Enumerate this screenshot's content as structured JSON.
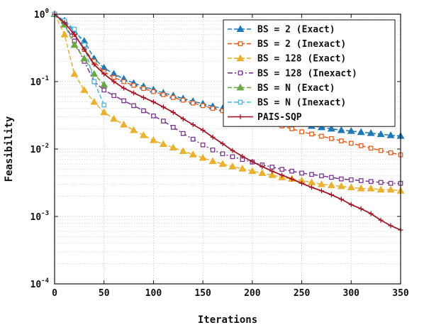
{
  "chart_data": {
    "type": "line",
    "title": "",
    "xlabel": "Iterations",
    "ylabel": "Feasibility",
    "xlim": [
      0,
      350
    ],
    "ylim": [
      0.0001,
      1
    ],
    "y_scale": "log",
    "grid": true,
    "legend_position": "top-right",
    "x_ticks": [
      0,
      50,
      100,
      150,
      200,
      250,
      300,
      350
    ],
    "y_ticks": [
      {
        "value": 1,
        "base": "10",
        "exp": "0"
      },
      {
        "value": 0.1,
        "base": "10",
        "exp": "-1"
      },
      {
        "value": 0.01,
        "base": "10",
        "exp": "-2"
      },
      {
        "value": 0.001,
        "base": "10",
        "exp": "-3"
      },
      {
        "value": 0.0001,
        "base": "10",
        "exp": "-4"
      }
    ],
    "series": [
      {
        "name": "BS = 2 (Exact)",
        "color": "#1f78b8",
        "marker": "triangle",
        "dash": "dash",
        "points": [
          [
            0,
            1.0
          ],
          [
            10,
            0.8
          ],
          [
            20,
            0.55
          ],
          [
            30,
            0.4
          ],
          [
            40,
            0.22
          ],
          [
            50,
            0.16
          ],
          [
            60,
            0.13
          ],
          [
            70,
            0.11
          ],
          [
            80,
            0.095
          ],
          [
            90,
            0.085
          ],
          [
            100,
            0.076
          ],
          [
            110,
            0.068
          ],
          [
            120,
            0.062
          ],
          [
            130,
            0.056
          ],
          [
            140,
            0.051
          ],
          [
            150,
            0.047
          ],
          [
            160,
            0.043
          ],
          [
            170,
            0.04
          ],
          [
            180,
            0.037
          ],
          [
            190,
            0.035
          ],
          [
            200,
            0.032
          ],
          [
            210,
            0.03
          ],
          [
            220,
            0.028
          ],
          [
            230,
            0.027
          ],
          [
            240,
            0.025
          ],
          [
            250,
            0.024
          ],
          [
            260,
            0.022
          ],
          [
            270,
            0.021
          ],
          [
            280,
            0.02
          ],
          [
            290,
            0.019
          ],
          [
            300,
            0.0185
          ],
          [
            310,
            0.0178
          ],
          [
            320,
            0.0172
          ],
          [
            330,
            0.0166
          ],
          [
            340,
            0.016
          ],
          [
            350,
            0.0156
          ]
        ]
      },
      {
        "name": "BS = 2 (Inexact)",
        "color": "#e06020",
        "marker": "square",
        "dash": "dash",
        "points": [
          [
            0,
            1.0
          ],
          [
            10,
            0.75
          ],
          [
            20,
            0.5
          ],
          [
            30,
            0.3
          ],
          [
            40,
            0.2
          ],
          [
            50,
            0.14
          ],
          [
            60,
            0.115
          ],
          [
            70,
            0.1
          ],
          [
            80,
            0.088
          ],
          [
            90,
            0.079
          ],
          [
            100,
            0.071
          ],
          [
            110,
            0.064
          ],
          [
            120,
            0.058
          ],
          [
            130,
            0.053
          ],
          [
            140,
            0.048
          ],
          [
            150,
            0.044
          ],
          [
            160,
            0.04
          ],
          [
            170,
            0.037
          ],
          [
            180,
            0.034
          ],
          [
            190,
            0.031
          ],
          [
            200,
            0.029
          ],
          [
            210,
            0.026
          ],
          [
            220,
            0.024
          ],
          [
            230,
            0.022
          ],
          [
            240,
            0.02
          ],
          [
            250,
            0.018
          ],
          [
            260,
            0.0167
          ],
          [
            270,
            0.0155
          ],
          [
            280,
            0.0143
          ],
          [
            290,
            0.0132
          ],
          [
            300,
            0.0122
          ],
          [
            310,
            0.0112
          ],
          [
            320,
            0.0103
          ],
          [
            330,
            0.0095
          ],
          [
            340,
            0.0088
          ],
          [
            350,
            0.0082
          ]
        ]
      },
      {
        "name": "BS = 128 (Exact)",
        "color": "#eab030",
        "marker": "triangle",
        "dash": "dash",
        "points": [
          [
            0,
            1.0
          ],
          [
            10,
            0.5
          ],
          [
            20,
            0.13
          ],
          [
            30,
            0.075
          ],
          [
            40,
            0.05
          ],
          [
            50,
            0.035
          ],
          [
            60,
            0.028
          ],
          [
            70,
            0.023
          ],
          [
            80,
            0.019
          ],
          [
            90,
            0.016
          ],
          [
            100,
            0.0135
          ],
          [
            110,
            0.0118
          ],
          [
            120,
            0.0105
          ],
          [
            130,
            0.0093
          ],
          [
            140,
            0.0083
          ],
          [
            150,
            0.0074
          ],
          [
            160,
            0.0066
          ],
          [
            170,
            0.006
          ],
          [
            180,
            0.0055
          ],
          [
            190,
            0.0051
          ],
          [
            200,
            0.0047
          ],
          [
            210,
            0.0044
          ],
          [
            220,
            0.0041
          ],
          [
            230,
            0.0038
          ],
          [
            240,
            0.0036
          ],
          [
            250,
            0.0034
          ],
          [
            260,
            0.0032
          ],
          [
            270,
            0.003
          ],
          [
            280,
            0.0029
          ],
          [
            290,
            0.0028
          ],
          [
            300,
            0.0027
          ],
          [
            310,
            0.0026
          ],
          [
            320,
            0.0026
          ],
          [
            330,
            0.0025
          ],
          [
            340,
            0.0025
          ],
          [
            350,
            0.0024
          ]
        ]
      },
      {
        "name": "BS = 128 (Inexact)",
        "color": "#7a3590",
        "marker": "square",
        "dash": "dashdot",
        "points": [
          [
            0,
            1.0
          ],
          [
            10,
            0.7
          ],
          [
            20,
            0.4
          ],
          [
            30,
            0.2
          ],
          [
            40,
            0.1
          ],
          [
            50,
            0.075
          ],
          [
            60,
            0.062
          ],
          [
            70,
            0.052
          ],
          [
            80,
            0.044
          ],
          [
            90,
            0.037
          ],
          [
            100,
            0.031
          ],
          [
            110,
            0.026
          ],
          [
            120,
            0.021
          ],
          [
            130,
            0.017
          ],
          [
            140,
            0.014
          ],
          [
            150,
            0.0115
          ],
          [
            160,
            0.0097
          ],
          [
            170,
            0.0085
          ],
          [
            180,
            0.0077
          ],
          [
            190,
            0.007
          ],
          [
            200,
            0.0064
          ],
          [
            210,
            0.0058
          ],
          [
            220,
            0.0054
          ],
          [
            230,
            0.005
          ],
          [
            240,
            0.0047
          ],
          [
            250,
            0.0044
          ],
          [
            260,
            0.0042
          ],
          [
            270,
            0.004
          ],
          [
            280,
            0.0038
          ],
          [
            290,
            0.0036
          ],
          [
            300,
            0.0035
          ],
          [
            310,
            0.0034
          ],
          [
            320,
            0.0033
          ],
          [
            330,
            0.0032
          ],
          [
            340,
            0.0031
          ],
          [
            350,
            0.0031
          ]
        ]
      },
      {
        "name": "BS = N (Exact)",
        "color": "#6aa845",
        "marker": "triangle",
        "dash": "dash",
        "points": [
          [
            0,
            1.0
          ],
          [
            10,
            0.7
          ],
          [
            20,
            0.35
          ],
          [
            30,
            0.22
          ],
          [
            40,
            0.13
          ],
          [
            50,
            0.09
          ]
        ]
      },
      {
        "name": "BS = N (Inexact)",
        "color": "#4db8e8",
        "marker": "square",
        "dash": "dash",
        "points": [
          [
            0,
            1.0
          ],
          [
            10,
            0.8
          ],
          [
            20,
            0.6
          ],
          [
            30,
            0.35
          ],
          [
            40,
            0.1
          ],
          [
            50,
            0.045
          ]
        ]
      },
      {
        "name": "PAIS-SQP",
        "color": "#a0182a",
        "marker": "plus",
        "dash": "solid",
        "points": [
          [
            0,
            1.0
          ],
          [
            10,
            0.75
          ],
          [
            20,
            0.5
          ],
          [
            30,
            0.3
          ],
          [
            40,
            0.18
          ],
          [
            50,
            0.13
          ],
          [
            60,
            0.1
          ],
          [
            70,
            0.08
          ],
          [
            80,
            0.068
          ],
          [
            90,
            0.058
          ],
          [
            100,
            0.05
          ],
          [
            110,
            0.042
          ],
          [
            120,
            0.035
          ],
          [
            130,
            0.028
          ],
          [
            140,
            0.023
          ],
          [
            150,
            0.019
          ],
          [
            160,
            0.015
          ],
          [
            170,
            0.012
          ],
          [
            180,
            0.0095
          ],
          [
            190,
            0.0078
          ],
          [
            200,
            0.0065
          ],
          [
            210,
            0.0055
          ],
          [
            220,
            0.0047
          ],
          [
            230,
            0.0041
          ],
          [
            240,
            0.0036
          ],
          [
            250,
            0.0031
          ],
          [
            260,
            0.0027
          ],
          [
            270,
            0.0024
          ],
          [
            280,
            0.0021
          ],
          [
            290,
            0.0018
          ],
          [
            300,
            0.0015
          ],
          [
            310,
            0.0013
          ],
          [
            320,
            0.0011
          ],
          [
            330,
            0.00088
          ],
          [
            340,
            0.00073
          ],
          [
            350,
            0.00063
          ]
        ]
      }
    ]
  }
}
